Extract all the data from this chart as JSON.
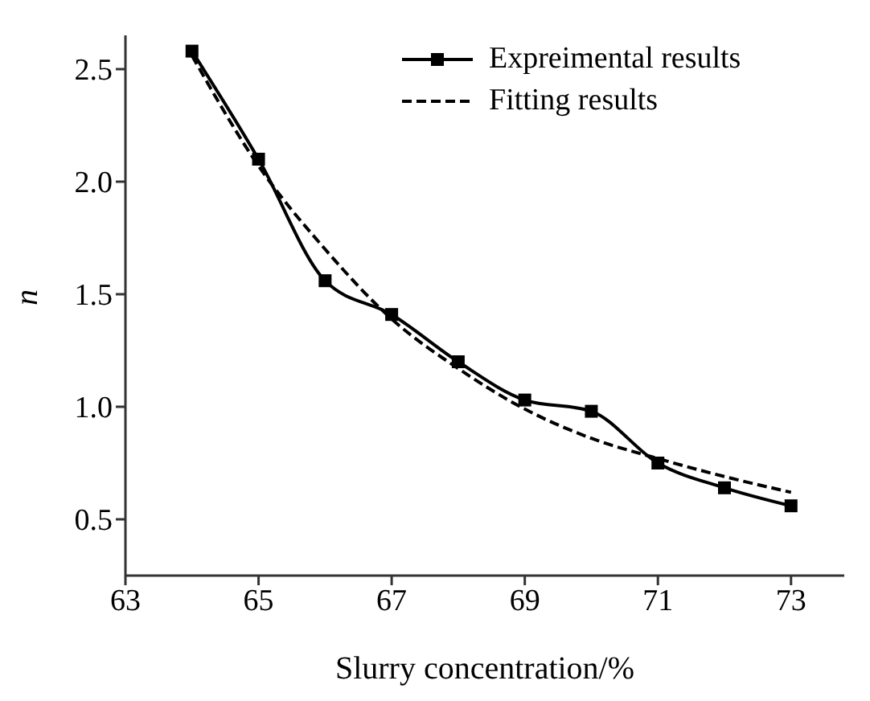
{
  "chart_data": {
    "type": "line",
    "xlabel": "Slurry concentration/%",
    "ylabel": "n",
    "x": [
      64,
      65,
      66,
      67,
      68,
      69,
      70,
      71,
      72,
      73
    ],
    "series": [
      {
        "name": "Expreimental results",
        "color": "#000000",
        "marker": "square",
        "line_style": "solid",
        "values": [
          2.58,
          2.1,
          1.56,
          1.41,
          1.2,
          1.03,
          0.98,
          0.75,
          0.64,
          0.56
        ]
      },
      {
        "name": "Fitting results",
        "color": "#000000",
        "marker": "none",
        "line_style": "dashed",
        "values": [
          2.56,
          2.07,
          1.7,
          1.39,
          1.17,
          0.99,
          0.86,
          0.77,
          0.69,
          0.62
        ]
      }
    ],
    "xlim": [
      63,
      73.8
    ],
    "xticks": [
      63,
      65,
      67,
      69,
      71,
      73
    ],
    "ylim": [
      0.25,
      2.65
    ],
    "yticks": [
      0.5,
      {
        "value": 1,
        "label": "1.0"
      },
      1.5,
      {
        "value": 2,
        "label": "2.0"
      },
      2.5
    ],
    "grid": false,
    "legend": "top right"
  }
}
